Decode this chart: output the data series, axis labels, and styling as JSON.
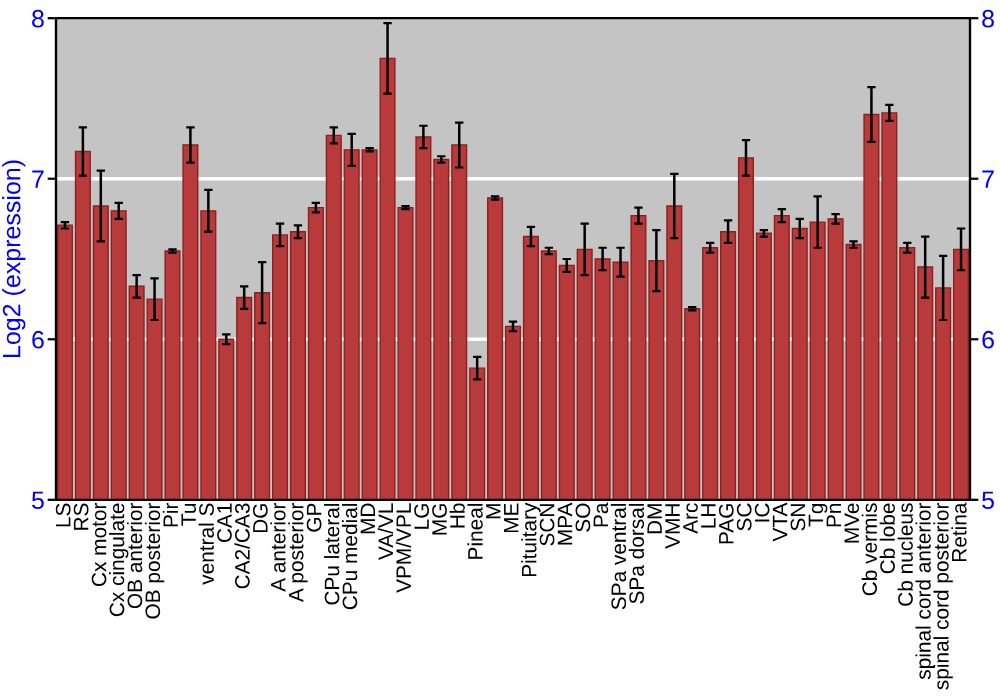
{
  "chart_data": {
    "type": "bar",
    "ylabel": "Log2 (expression)",
    "categories": [
      "LS",
      "RS",
      "Cx motor",
      "Cx cingulate",
      "OB anterior",
      "OB posterior",
      "Pir",
      "Tu",
      "ventral S",
      "CA1",
      "CA2/CA3",
      "DG",
      "A anterior",
      "A posterior",
      "GP",
      "CPu lateral",
      "CPu medial",
      "MD",
      "VA/VL",
      "VPM/VPL",
      "LG",
      "MG",
      "Hb",
      "Pineal",
      "M",
      "ME",
      "Pituitary",
      "SCN",
      "MPA",
      "SO",
      "Pa",
      "SPa ventral",
      "SPa dorsal",
      "DM",
      "VMH",
      "Arc",
      "LH",
      "PAG",
      "SC",
      "IC",
      "VTA",
      "SN",
      "Tg",
      "Pn",
      "MVe",
      "Cb vermis",
      "Cb lobe",
      "Cb nucleus",
      "spinal cord anterior",
      "spinal cord posterior",
      "Retina"
    ],
    "values": [
      6.71,
      7.17,
      6.83,
      6.8,
      6.33,
      6.25,
      6.55,
      7.21,
      6.8,
      6.0,
      6.26,
      6.29,
      6.65,
      6.67,
      6.82,
      7.27,
      7.18,
      7.18,
      7.75,
      6.82,
      7.26,
      7.12,
      7.21,
      5.82,
      6.88,
      6.08,
      6.64,
      6.55,
      6.46,
      6.56,
      6.5,
      6.48,
      6.77,
      6.49,
      6.83,
      6.19,
      6.57,
      6.67,
      7.13,
      6.66,
      6.77,
      6.69,
      6.73,
      6.75,
      6.59,
      7.4,
      7.41,
      6.57,
      6.45,
      6.32,
      6.56
    ],
    "errors": [
      0.02,
      0.15,
      0.22,
      0.05,
      0.07,
      0.13,
      0.01,
      0.11,
      0.13,
      0.03,
      0.07,
      0.19,
      0.07,
      0.04,
      0.03,
      0.05,
      0.1,
      0.01,
      0.22,
      0.01,
      0.07,
      0.02,
      0.14,
      0.07,
      0.01,
      0.03,
      0.06,
      0.02,
      0.04,
      0.16,
      0.07,
      0.09,
      0.05,
      0.19,
      0.2,
      0.01,
      0.03,
      0.07,
      0.11,
      0.02,
      0.04,
      0.06,
      0.16,
      0.03,
      0.02,
      0.17,
      0.05,
      0.03,
      0.19,
      0.2,
      0.13
    ],
    "color": "#b83a3a",
    "ylim": [
      5,
      8
    ],
    "yticks": [
      5,
      6,
      7,
      8
    ],
    "y2lim": [
      5,
      8
    ],
    "y2ticks": [
      5,
      6,
      7,
      8
    ],
    "grid": "y"
  }
}
